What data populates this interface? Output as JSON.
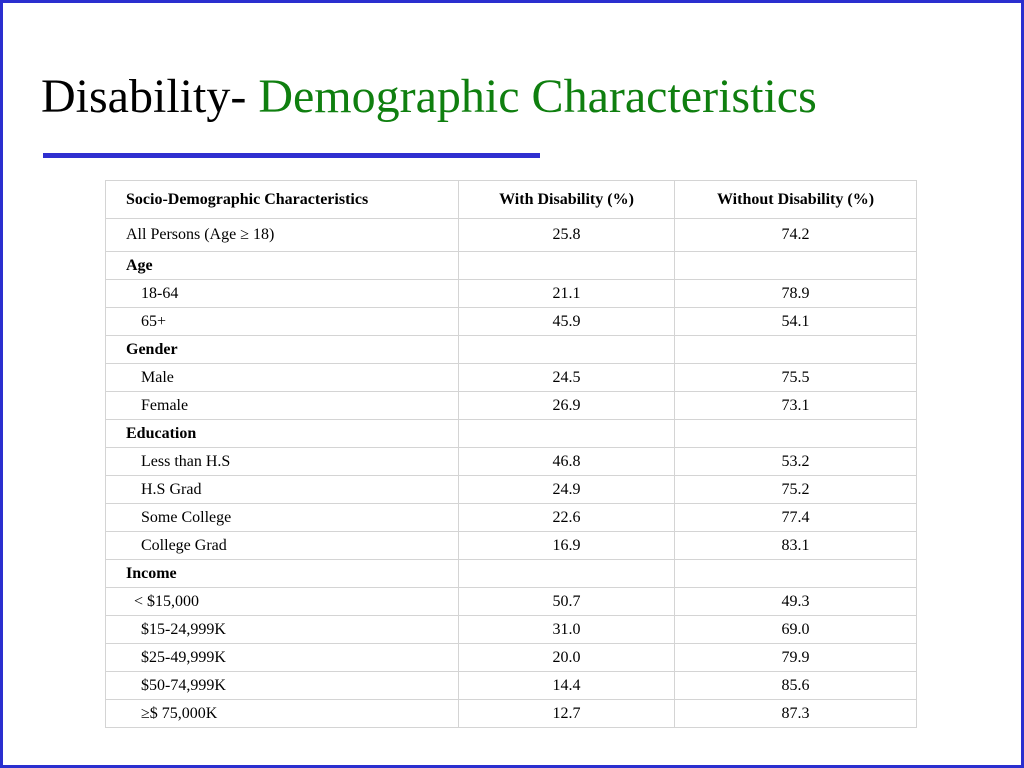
{
  "title": {
    "prefix": "Disability- ",
    "main": "Demographic Characteristics"
  },
  "colors": {
    "border": "#2a2fcf",
    "rule": "#2f2fd0",
    "title_accent": "#0f7f0f"
  },
  "table": {
    "headers": [
      "Socio-Demographic Characteristics",
      "With Disability (%)",
      "Without Disability (%)"
    ],
    "rows": [
      {
        "label": "All Persons (Age ≥ 18)",
        "with": "25.8",
        "without": "74.2",
        "kind": "first"
      },
      {
        "label": "Age",
        "with": "",
        "without": "",
        "kind": "section"
      },
      {
        "label": "18-64",
        "with": "21.1",
        "without": "78.9",
        "kind": "item"
      },
      {
        "label": "65+",
        "with": "45.9",
        "without": "54.1",
        "kind": "item"
      },
      {
        "label": "Gender",
        "with": "",
        "without": "",
        "kind": "section"
      },
      {
        "label": "Male",
        "with": "24.5",
        "without": "75.5",
        "kind": "item"
      },
      {
        "label": "Female",
        "with": "26.9",
        "without": "73.1",
        "kind": "item"
      },
      {
        "label": "Education",
        "with": "",
        "without": "",
        "kind": "section"
      },
      {
        "label": "Less than H.S",
        "with": "46.8",
        "without": "53.2",
        "kind": "item"
      },
      {
        "label": "H.S Grad",
        "with": "24.9",
        "without": "75.2",
        "kind": "item"
      },
      {
        "label": "Some College",
        "with": "22.6",
        "without": "77.4",
        "kind": "item"
      },
      {
        "label": "College Grad",
        "with": "16.9",
        "without": "83.1",
        "kind": "item"
      },
      {
        "label": "Income",
        "with": "",
        "without": "",
        "kind": "section"
      },
      {
        "label": "< $15,000",
        "with": "50.7",
        "without": "49.3",
        "kind": "item2"
      },
      {
        "label": "$15-24,999K",
        "with": "31.0",
        "without": "69.0",
        "kind": "item"
      },
      {
        "label": "$25-49,999K",
        "with": "20.0",
        "without": "79.9",
        "kind": "item"
      },
      {
        "label": "$50-74,999K",
        "with": "14.4",
        "without": "85.6",
        "kind": "item"
      },
      {
        "label": "≥$ 75,000K",
        "with": "12.7",
        "without": "87.3",
        "kind": "item"
      }
    ]
  }
}
